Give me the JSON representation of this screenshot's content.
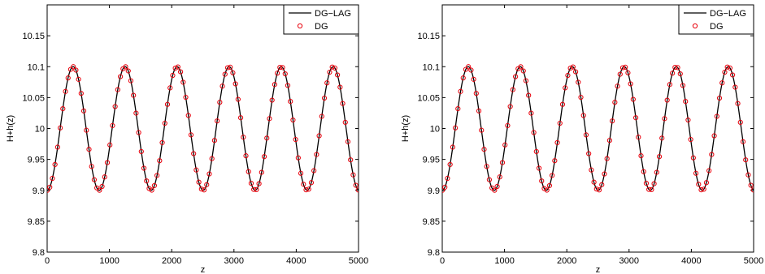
{
  "chart_data": [
    {
      "type": "line",
      "title": "",
      "xlabel": "z",
      "ylabel": "H+h(z)",
      "xlim": [
        0,
        5000
      ],
      "ylim": [
        9.8,
        10.2
      ],
      "xticks": [
        0,
        1000,
        2000,
        3000,
        4000,
        5000
      ],
      "xtick_labels": [
        "0",
        "1000",
        "2000",
        "3000",
        "4000",
        "5000"
      ],
      "yticks": [
        9.8,
        9.85,
        9.9,
        9.95,
        10,
        10.05,
        10.1,
        10.15
      ],
      "ytick_labels": [
        "9.8",
        "9.85",
        "9.9",
        "9.95",
        "10",
        "10.05",
        "10.1",
        "10.15"
      ],
      "grid": false,
      "legend_position": "top-right",
      "signal": {
        "mean": 10.0,
        "amplitude": 0.1,
        "period": 835,
        "phase_zero": 0
      },
      "series": [
        {
          "name": "DG−LAG",
          "style": "solid-line",
          "color": "#000000"
        },
        {
          "name": "DG",
          "style": "open-circle-markers",
          "color": "#e8000b",
          "marker_spacing": 42
        }
      ]
    },
    {
      "type": "line",
      "title": "",
      "xlabel": "z",
      "ylabel": "H+h(z)",
      "xlim": [
        0,
        5000
      ],
      "ylim": [
        9.8,
        10.2
      ],
      "xticks": [
        0,
        1000,
        2000,
        3000,
        4000,
        5000
      ],
      "xtick_labels": [
        "0",
        "1000",
        "2000",
        "3000",
        "4000",
        "5000"
      ],
      "yticks": [
        9.8,
        9.85,
        9.9,
        9.95,
        10,
        10.05,
        10.1,
        10.15
      ],
      "ytick_labels": [
        "9.8",
        "9.85",
        "9.9",
        "9.95",
        "10",
        "10.05",
        "10.1",
        "10.15"
      ],
      "grid": false,
      "legend_position": "top-right",
      "signal": {
        "mean": 10.0,
        "amplitude": 0.1,
        "period": 835,
        "phase_zero": 0
      },
      "series": [
        {
          "name": "DG−LAG",
          "style": "solid-line",
          "color": "#000000"
        },
        {
          "name": "DG",
          "style": "open-circle-markers",
          "color": "#e8000b",
          "marker_spacing": 42
        }
      ]
    }
  ]
}
